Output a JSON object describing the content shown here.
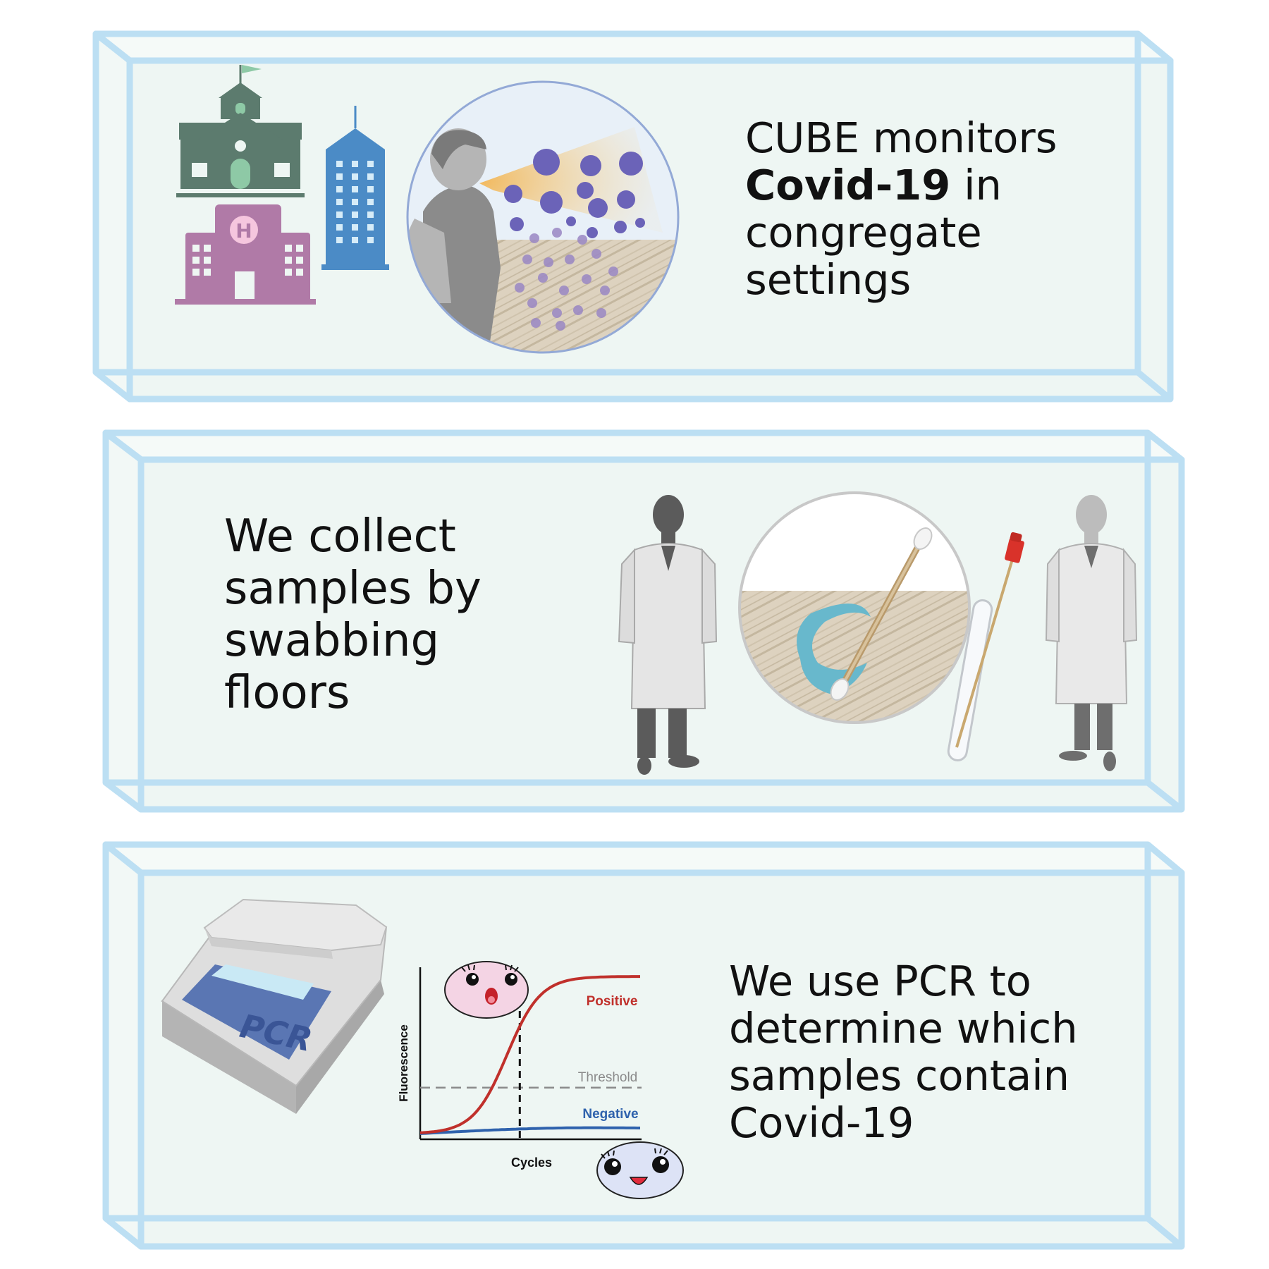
{
  "panels": [
    {
      "id": "congregate",
      "text_lines": [
        {
          "pre": "CUBE monitors",
          "bold": "",
          "post": ""
        },
        {
          "pre": "",
          "bold": "Covid-19",
          "post": " in"
        },
        {
          "pre": "congregate",
          "bold": "",
          "post": ""
        },
        {
          "pre": "settings",
          "bold": "",
          "post": ""
        }
      ],
      "icons": [
        "school-icon",
        "hospital-icon",
        "office-tower-icon",
        "person-coughing-icon",
        "virus-particle-icon"
      ]
    },
    {
      "id": "swabbing",
      "text_lines": [
        "We collect",
        "samples by",
        "swabbing",
        "floors"
      ],
      "icons": [
        "lab-coat-person-icon",
        "swab-icon",
        "sample-tube-icon"
      ]
    },
    {
      "id": "pcr",
      "text_lines": [
        "We use PCR to",
        "determine which",
        "samples contain",
        "Covid-19"
      ],
      "machine_label": "PCR",
      "icons": [
        "pcr-machine-icon",
        "surprised-face-icon",
        "happy-face-icon"
      ]
    }
  ],
  "chart_data": {
    "type": "line",
    "title": "",
    "xlabel": "Cycles",
    "ylabel": "Fluorescence",
    "series": [
      {
        "name": "Positive",
        "color": "#c0302b",
        "shape": "sigmoid-rising"
      },
      {
        "name": "Negative",
        "color": "#2f62ad",
        "shape": "flat-low"
      }
    ],
    "threshold_label": "Threshold",
    "threshold_fraction": 0.3,
    "crossing_cycle_fraction": 0.45
  },
  "colors": {
    "box_edge": "#bcdff3",
    "box_fill": "#eef6f3",
    "positive": "#c0302b",
    "negative": "#2f62ad",
    "threshold": "#8a8a8a"
  }
}
